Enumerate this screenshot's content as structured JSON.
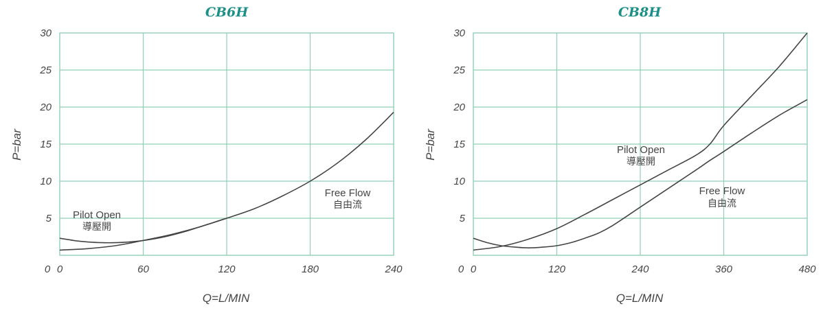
{
  "chart_data": [
    {
      "type": "line",
      "title": "CB6H",
      "xlabel": "Q=L/MIN",
      "ylabel": "P=bar",
      "xlim": [
        0,
        240
      ],
      "ylim": [
        0,
        30
      ],
      "x_ticks": [
        "0",
        "60",
        "120",
        "180",
        "240"
      ],
      "y_ticks": [
        "5",
        "10",
        "15",
        "20",
        "25",
        "30"
      ],
      "grid": true,
      "series": [
        {
          "name": "Pilot Open 導壓開",
          "x": [
            0,
            10,
            20,
            30,
            40,
            50,
            60,
            70,
            80,
            90,
            100,
            110,
            120
          ],
          "y": [
            2.3,
            2.0,
            1.8,
            1.7,
            1.7,
            1.8,
            2.0,
            2.3,
            2.7,
            3.2,
            3.8,
            4.4,
            5.0
          ]
        },
        {
          "name": "Free Flow 自由流",
          "x": [
            0,
            20,
            40,
            60,
            80,
            100,
            120,
            140,
            160,
            180,
            200,
            220,
            240
          ],
          "y": [
            0.7,
            0.9,
            1.3,
            2.0,
            2.8,
            3.8,
            5.0,
            6.3,
            8.0,
            10.0,
            12.5,
            15.6,
            19.3
          ]
        }
      ],
      "annotations": [
        {
          "text": "Pilot Open",
          "text_cn": "導壓開"
        },
        {
          "text": "Free Flow",
          "text_cn": "自由流"
        }
      ]
    },
    {
      "type": "line",
      "title": "CB8H",
      "xlabel": "Q=L/MIN",
      "ylabel": "P=bar",
      "xlim": [
        0,
        480
      ],
      "ylim": [
        0,
        30
      ],
      "x_ticks": [
        "0",
        "120",
        "240",
        "360",
        "480"
      ],
      "y_ticks": [
        "5",
        "10",
        "15",
        "20",
        "25",
        "30"
      ],
      "grid": true,
      "series": [
        {
          "name": "Pilot Open 導壓開",
          "x": [
            0,
            20,
            40,
            60,
            80,
            100,
            120,
            140,
            160,
            180,
            200,
            240,
            280,
            320,
            340,
            360,
            400,
            440,
            480
          ],
          "y": [
            2.3,
            1.7,
            1.3,
            1.1,
            1.0,
            1.1,
            1.3,
            1.7,
            2.3,
            3.0,
            4.0,
            6.5,
            9.0,
            11.5,
            12.8,
            14.0,
            16.5,
            18.9,
            21.0
          ]
        },
        {
          "name": "Free Flow 自由流",
          "x": [
            0,
            40,
            80,
            120,
            160,
            200,
            240,
            280,
            320,
            340,
            360,
            400,
            440,
            480
          ],
          "y": [
            0.7,
            1.2,
            2.2,
            3.6,
            5.5,
            7.5,
            9.5,
            11.5,
            13.5,
            15.0,
            17.5,
            21.5,
            25.5,
            30.0
          ]
        }
      ],
      "annotations": [
        {
          "text": "Pilot Open",
          "text_cn": "導壓開"
        },
        {
          "text": "Free Flow",
          "text_cn": "自由流"
        }
      ]
    }
  ]
}
